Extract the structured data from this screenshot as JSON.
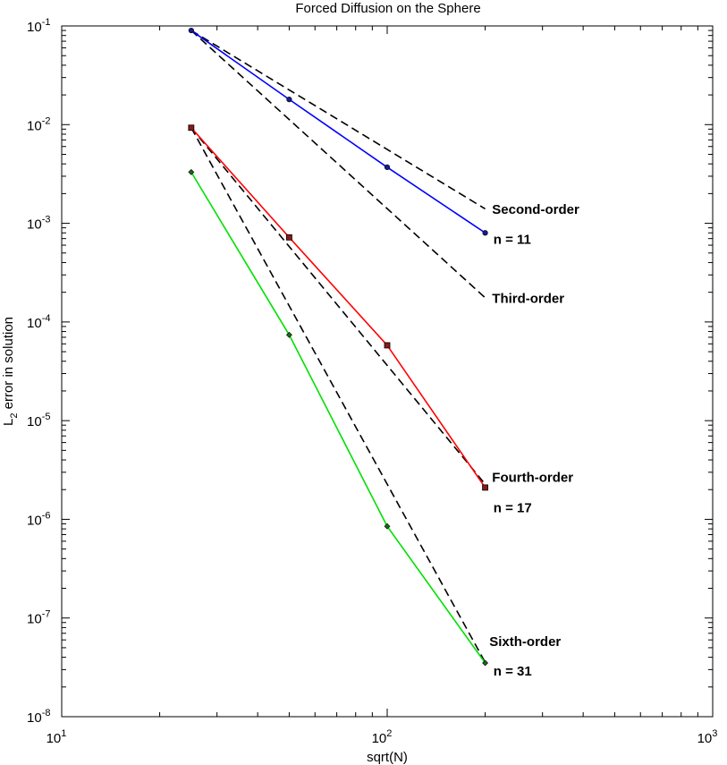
{
  "chart_data": {
    "type": "line",
    "title": "Forced Diffusion on the Sphere",
    "xlabel": "sqrt(N)",
    "ylabel_main": "L",
    "ylabel_sub": "2",
    "ylabel_rest": " error in solution",
    "xscale": "log",
    "yscale": "log",
    "xlim": [
      10,
      1000
    ],
    "ylim": [
      1e-08,
      0.1
    ],
    "grid": false,
    "x_ticks": [
      {
        "value": 10,
        "base": "10",
        "exp": "1"
      },
      {
        "value": 100,
        "base": "10",
        "exp": "2"
      },
      {
        "value": 1000,
        "base": "10",
        "exp": "3"
      }
    ],
    "y_ticks": [
      {
        "value": 0.1,
        "base": "10",
        "exp": "-1"
      },
      {
        "value": 0.01,
        "base": "10",
        "exp": "-2"
      },
      {
        "value": 0.001,
        "base": "10",
        "exp": "-3"
      },
      {
        "value": 0.0001,
        "base": "10",
        "exp": "-4"
      },
      {
        "value": 1e-05,
        "base": "10",
        "exp": "-5"
      },
      {
        "value": 1e-06,
        "base": "10",
        "exp": "-6"
      },
      {
        "value": 1e-07,
        "base": "10",
        "exp": "-7"
      },
      {
        "value": 1e-08,
        "base": "10",
        "exp": "-8"
      }
    ],
    "series": [
      {
        "name": "n = 11",
        "color": "#0000ff",
        "marker": "circle",
        "x": [
          25,
          50,
          100,
          200
        ],
        "y": [
          0.09,
          0.018,
          0.0037,
          0.0008
        ]
      },
      {
        "name": "n = 17",
        "color": "#ff0000",
        "marker": "square",
        "x": [
          25,
          50,
          100,
          200
        ],
        "y": [
          0.0093,
          0.00072,
          5.8e-05,
          2.1e-06
        ]
      },
      {
        "name": "n = 31",
        "color": "#00e000",
        "marker": "diamond",
        "x": [
          25,
          50,
          100,
          200
        ],
        "y": [
          0.0033,
          7.4e-05,
          8.5e-07,
          3.5e-08
        ]
      }
    ],
    "reference_lines": [
      {
        "name": "Second-order",
        "order": 2,
        "color": "#000000",
        "x": [
          25,
          200
        ],
        "y": [
          0.09,
          0.0014
        ]
      },
      {
        "name": "Third-order",
        "order": 3,
        "color": "#000000",
        "x": [
          25,
          200
        ],
        "y": [
          0.09,
          0.000176
        ]
      },
      {
        "name": "Fourth-order",
        "order": 4,
        "color": "#000000",
        "x": [
          25,
          200
        ],
        "y": [
          0.0093,
          2.27e-06
        ]
      },
      {
        "name": "Sixth-order",
        "order": 6,
        "color": "#000000",
        "x": [
          25,
          200
        ],
        "y": [
          0.0093,
          3.55e-08
        ]
      }
    ],
    "annotations": [
      {
        "text": "Second-order",
        "x": 210,
        "y": 0.00125
      },
      {
        "text": "n = 11",
        "x": 212,
        "y": 0.00062
      },
      {
        "text": "Third-order",
        "x": 210,
        "y": 0.000156
      },
      {
        "text": "Fourth-order",
        "x": 210,
        "y": 2.4e-06
      },
      {
        "text": "n = 17",
        "x": 212,
        "y": 1.18e-06
      },
      {
        "text": "Sixth-order",
        "x": 206,
        "y": 5.2e-08
      },
      {
        "text": "n = 31",
        "x": 212,
        "y": 2.6e-08
      }
    ]
  }
}
